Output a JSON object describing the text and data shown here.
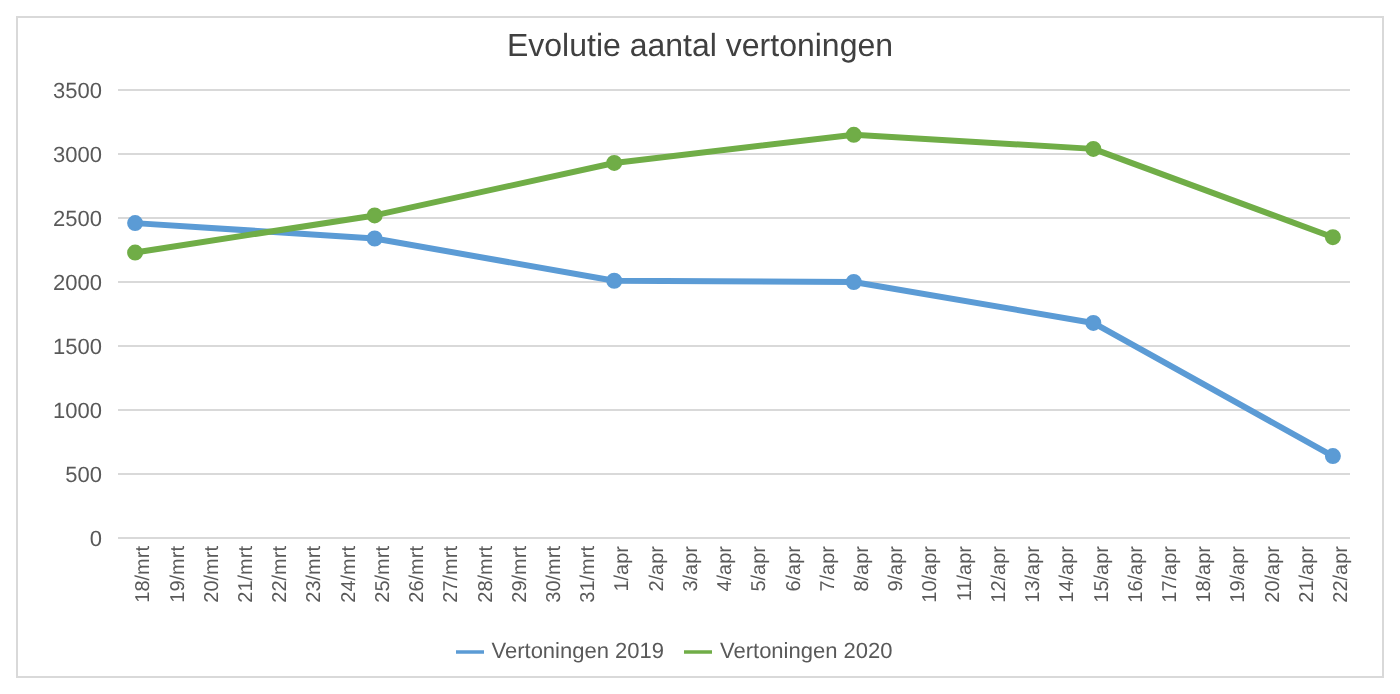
{
  "chart_data": {
    "type": "line",
    "title": "Evolutie aantal vertoningen",
    "categories": [
      "18/mrt",
      "19/mrt",
      "20/mrt",
      "21/mrt",
      "22/mrt",
      "23/mrt",
      "24/mrt",
      "25/mrt",
      "26/mrt",
      "27/mrt",
      "28/mrt",
      "29/mrt",
      "30/mrt",
      "31/mrt",
      "1/apr",
      "2/apr",
      "3/apr",
      "4/apr",
      "5/apr",
      "6/apr",
      "7/apr",
      "8/apr",
      "9/apr",
      "10/apr",
      "11/apr",
      "12/apr",
      "13/apr",
      "14/apr",
      "15/apr",
      "16/apr",
      "17/apr",
      "18/apr",
      "19/apr",
      "20/apr",
      "21/apr",
      "22/apr"
    ],
    "series": [
      {
        "name": "Vertoningen 2019",
        "color": "#5b9bd5",
        "x": [
          "18/mrt",
          "25/mrt",
          "1/apr",
          "8/apr",
          "15/apr",
          "22/apr"
        ],
        "values": [
          2460,
          2340,
          2010,
          2000,
          1680,
          640
        ]
      },
      {
        "name": "Vertoningen 2020",
        "color": "#70ad47",
        "x": [
          "18/mrt",
          "25/mrt",
          "1/apr",
          "8/apr",
          "15/apr",
          "22/apr"
        ],
        "values": [
          2230,
          2520,
          2930,
          3150,
          3040,
          2350
        ]
      }
    ],
    "ylim": [
      0,
      3500
    ],
    "yticks": [
      0,
      500,
      1000,
      1500,
      2000,
      2500,
      3000,
      3500
    ],
    "grid": "y",
    "legend": "bottom",
    "marker": "circle",
    "line_style": "solid"
  }
}
